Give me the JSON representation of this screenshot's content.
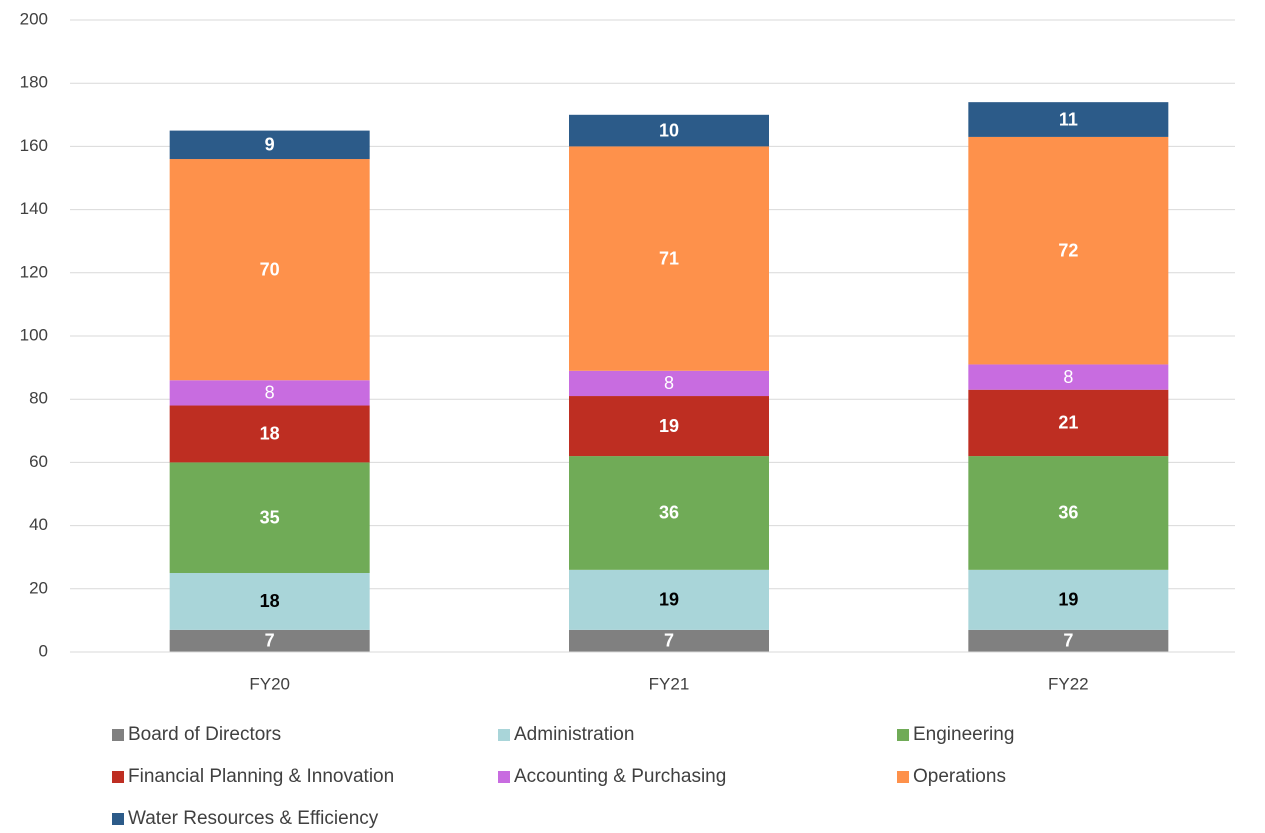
{
  "chart_data": {
    "type": "stacked_bar",
    "categories": [
      "FY20",
      "FY21",
      "FY22"
    ],
    "series": [
      {
        "name": "Board of Directors",
        "color": "#808080",
        "label_color": "#ffffff",
        "label_bold": true,
        "values": [
          7,
          7,
          7
        ]
      },
      {
        "name": "Administration",
        "color": "#a9d5d9",
        "label_color": "#000000",
        "label_bold": true,
        "values": [
          18,
          19,
          19
        ]
      },
      {
        "name": "Engineering",
        "color": "#70ab57",
        "label_color": "#ffffff",
        "label_bold": true,
        "values": [
          35,
          36,
          36
        ]
      },
      {
        "name": "Financial Planning & Innovation",
        "color": "#be2e22",
        "label_color": "#ffffff",
        "label_bold": true,
        "values": [
          18,
          19,
          21
        ]
      },
      {
        "name": "Accounting & Purchasing",
        "color": "#c86ce0",
        "label_color": "#ffffff",
        "label_bold": false,
        "values": [
          8,
          8,
          8
        ]
      },
      {
        "name": "Operations",
        "color": "#fe914b",
        "label_color": "#ffffff",
        "label_bold": true,
        "values": [
          70,
          71,
          72
        ]
      },
      {
        "name": "Water Resources & Efficiency",
        "color": "#2c5b89",
        "label_color": "#ffffff",
        "label_bold": true,
        "values": [
          9,
          10,
          11
        ]
      }
    ],
    "ylim": [
      0,
      200
    ],
    "yticks": [
      0,
      20,
      40,
      60,
      80,
      100,
      120,
      140,
      160,
      180,
      200
    ],
    "grid": true
  }
}
